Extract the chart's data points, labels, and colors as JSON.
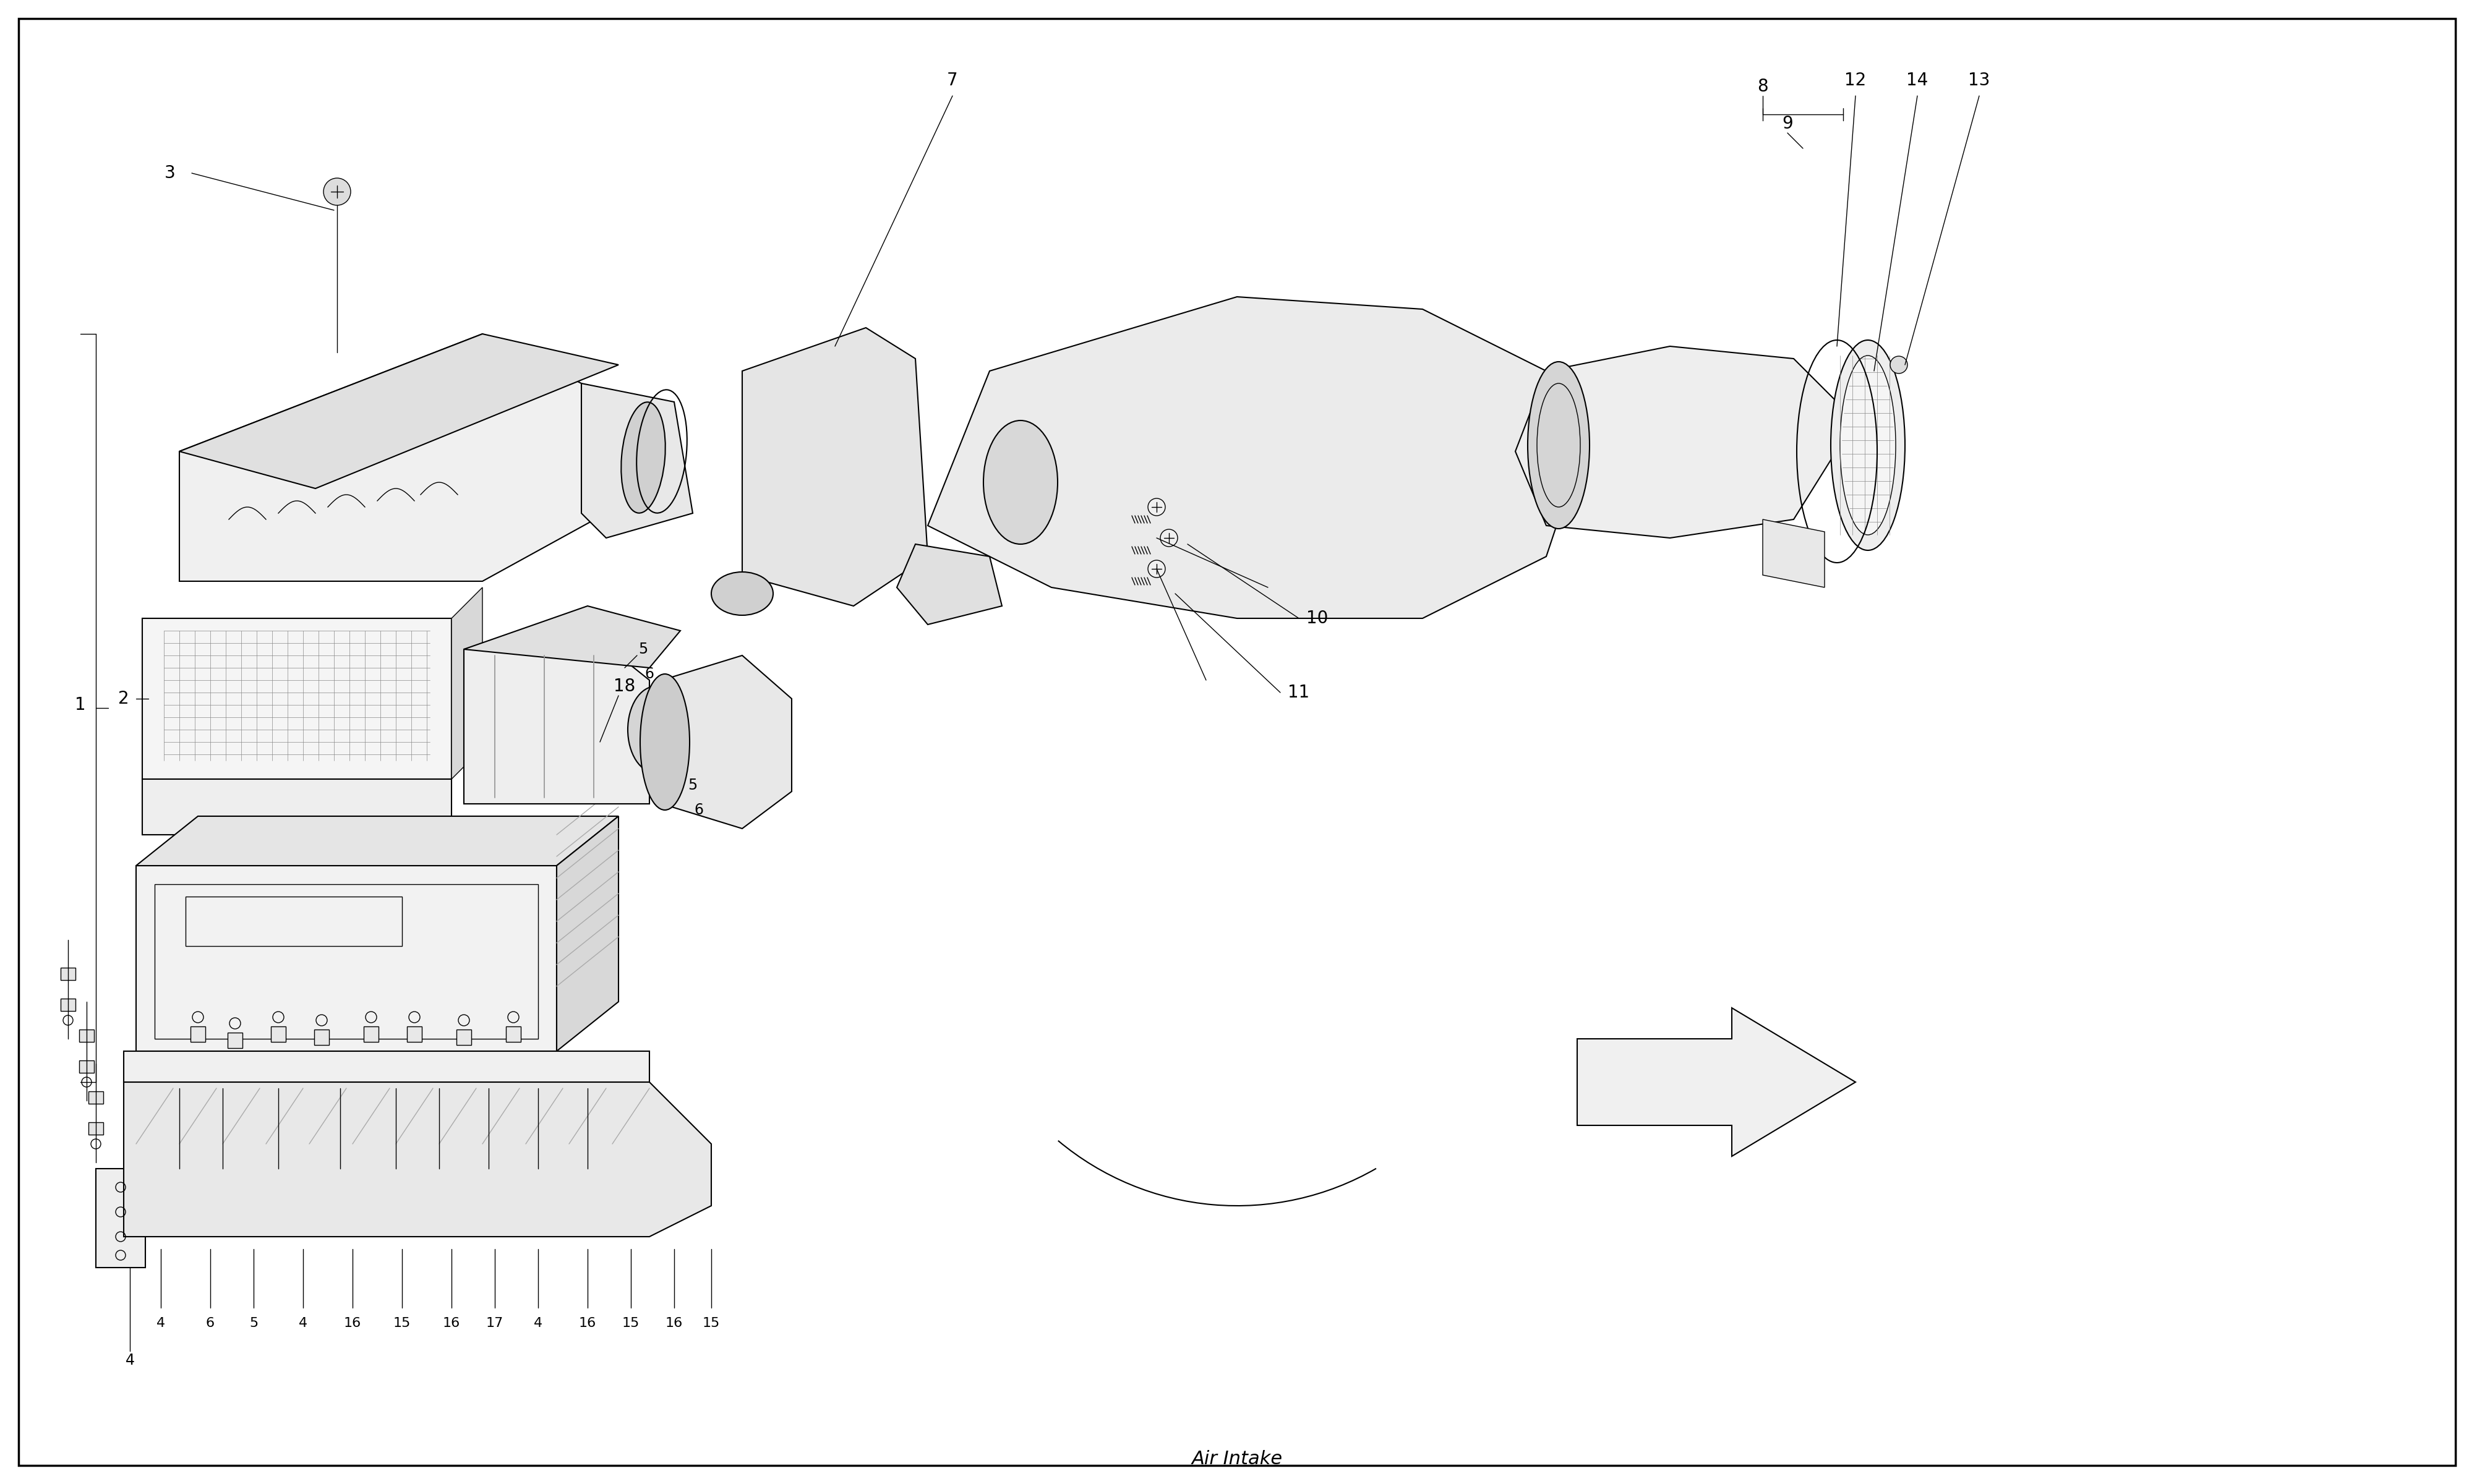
{
  "title": "Air Intake",
  "bg_color": "#ffffff",
  "line_color": "#000000",
  "fig_width": 40,
  "fig_height": 24,
  "lw_thin": 1.0,
  "lw_med": 1.5,
  "lw_thick": 2.5,
  "font_size_label": 20,
  "font_size_title": 22
}
